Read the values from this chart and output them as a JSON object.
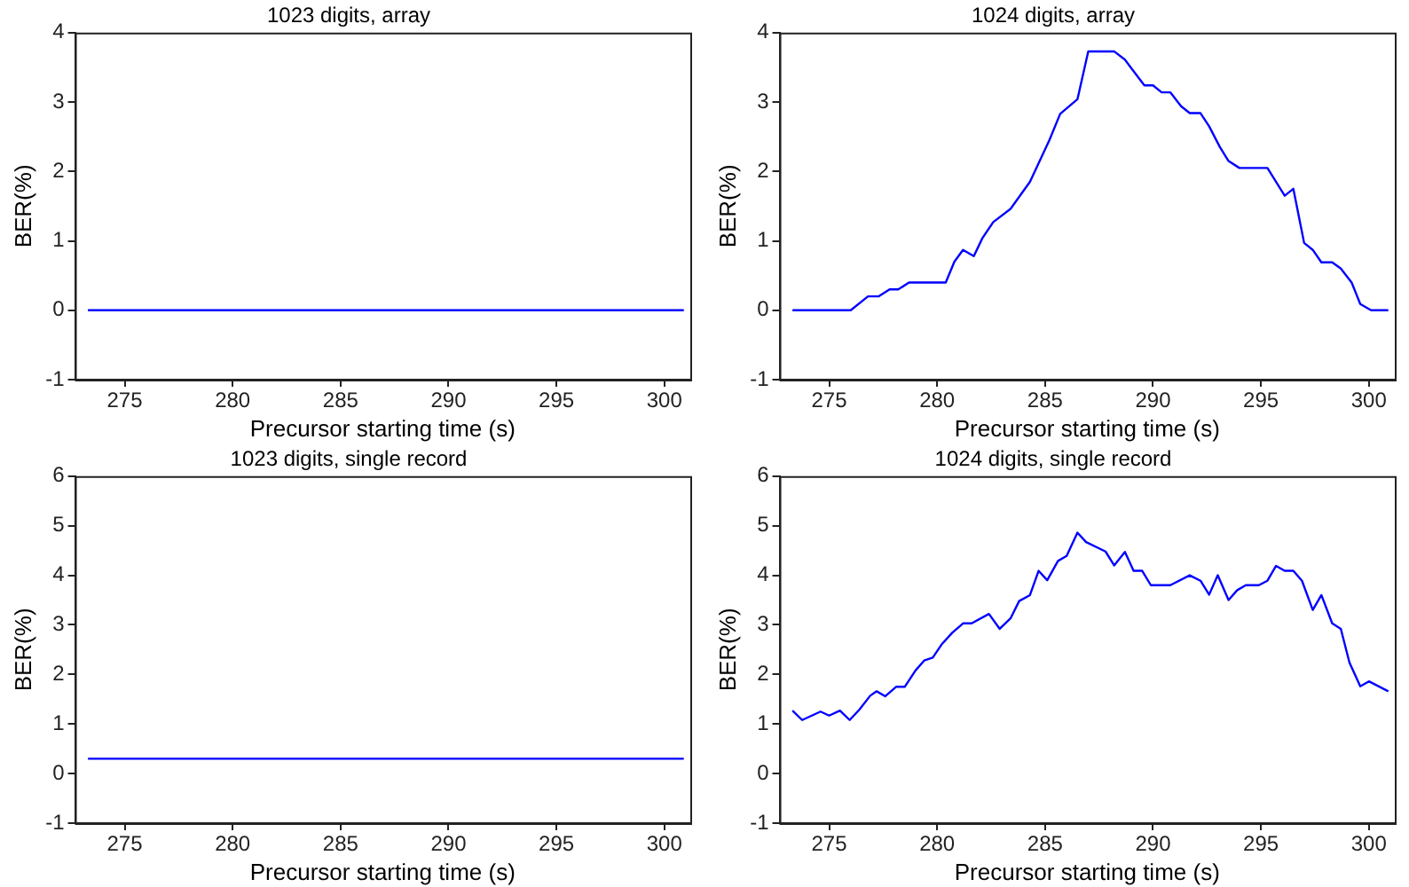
{
  "chart_data": [
    {
      "type": "line",
      "title": "1023 digits, array",
      "xlabel": "Precursor starting time (s)",
      "ylabel": "BER(%)",
      "xlim": [
        272.7,
        301.2
      ],
      "ylim": [
        -1,
        4
      ],
      "xticks": [
        275,
        280,
        285,
        290,
        295,
        300
      ],
      "yticks": [
        -1,
        0,
        1,
        2,
        3,
        4
      ],
      "grid": false,
      "legend": false,
      "series": [
        {
          "color": "#0000ff",
          "x": [
            273.3,
            300.9
          ],
          "values": [
            0,
            0
          ]
        }
      ]
    },
    {
      "type": "line",
      "title": "1024 digits, array",
      "xlabel": "Precursor starting time (s)",
      "ylabel": "BER(%)",
      "xlim": [
        272.7,
        301.2
      ],
      "ylim": [
        -1,
        4
      ],
      "xticks": [
        275,
        280,
        285,
        290,
        295,
        300
      ],
      "yticks": [
        -1,
        0,
        1,
        2,
        3,
        4
      ],
      "grid": false,
      "legend": false,
      "series": [
        {
          "color": "#0000ff",
          "x": [
            273.3,
            276.0,
            276.8,
            277.3,
            277.8,
            278.2,
            278.7,
            280.4,
            280.8,
            281.2,
            281.7,
            282.1,
            282.6,
            283.4,
            284.3,
            285.2,
            285.7,
            286.5,
            287.0,
            288.2,
            288.7,
            289.6,
            290.0,
            290.4,
            290.8,
            291.3,
            291.7,
            292.2,
            292.6,
            293.1,
            293.5,
            294.0,
            295.3,
            296.1,
            296.5,
            297.0,
            297.4,
            297.8,
            298.3,
            298.7,
            299.2,
            299.6,
            300.1,
            300.9
          ],
          "values": [
            0,
            0,
            0.2,
            0.2,
            0.3,
            0.3,
            0.4,
            0.4,
            0.7,
            0.87,
            0.78,
            1.04,
            1.27,
            1.46,
            1.85,
            2.45,
            2.83,
            3.04,
            3.73,
            3.73,
            3.61,
            3.24,
            3.24,
            3.14,
            3.14,
            2.94,
            2.84,
            2.84,
            2.65,
            2.35,
            2.15,
            2.05,
            2.05,
            1.65,
            1.75,
            0.97,
            0.87,
            0.69,
            0.69,
            0.6,
            0.4,
            0.09,
            0,
            0
          ]
        }
      ]
    },
    {
      "type": "line",
      "title": "1023 digits, single record",
      "xlabel": "Precursor starting time (s)",
      "ylabel": "BER(%)",
      "xlim": [
        272.7,
        301.2
      ],
      "ylim": [
        -1,
        6
      ],
      "xticks": [
        275,
        280,
        285,
        290,
        295,
        300
      ],
      "yticks": [
        -1,
        0,
        1,
        2,
        3,
        4,
        5,
        6
      ],
      "grid": false,
      "legend": false,
      "series": [
        {
          "color": "#0000ff",
          "x": [
            273.3,
            300.9
          ],
          "values": [
            0.3,
            0.3
          ]
        }
      ]
    },
    {
      "type": "line",
      "title": "1024 digits, single record",
      "xlabel": "Precursor starting time (s)",
      "ylabel": "BER(%)",
      "xlim": [
        272.7,
        301.2
      ],
      "ylim": [
        -1,
        6
      ],
      "xticks": [
        275,
        280,
        285,
        290,
        295,
        300
      ],
      "yticks": [
        -1,
        0,
        1,
        2,
        3,
        4,
        5,
        6
      ],
      "grid": false,
      "legend": false,
      "series": [
        {
          "color": "#0000ff",
          "x": [
            273.3,
            273.75,
            274.6,
            275,
            275.5,
            275.95,
            276.4,
            276.9,
            277.2,
            277.6,
            278.1,
            278.5,
            279,
            279.4,
            279.8,
            280.2,
            280.7,
            281.2,
            281.6,
            282.4,
            282.9,
            283.4,
            283.8,
            284.3,
            284.7,
            285.1,
            285.6,
            286.0,
            286.5,
            286.9,
            287.8,
            288.2,
            288.7,
            289.1,
            289.5,
            289.9,
            290.8,
            291.7,
            292.2,
            292.6,
            293.0,
            293.5,
            293.9,
            294.3,
            294.9,
            295.3,
            295.7,
            296.1,
            296.5,
            296.9,
            297.4,
            297.8,
            298.3,
            298.7,
            299.1,
            299.6,
            300.0,
            300.9
          ],
          "values": [
            1.27,
            1.08,
            1.25,
            1.17,
            1.27,
            1.08,
            1.29,
            1.57,
            1.66,
            1.56,
            1.75,
            1.75,
            2.08,
            2.28,
            2.34,
            2.6,
            2.84,
            3.03,
            3.03,
            3.22,
            2.92,
            3.13,
            3.48,
            3.6,
            4.09,
            3.9,
            4.29,
            4.39,
            4.86,
            4.67,
            4.48,
            4.2,
            4.47,
            4.09,
            4.09,
            3.8,
            3.8,
            4.0,
            3.89,
            3.61,
            4.0,
            3.5,
            3.7,
            3.8,
            3.8,
            3.89,
            4.19,
            4.09,
            4.09,
            3.89,
            3.3,
            3.6,
            3.03,
            2.92,
            2.24,
            1.76,
            1.86,
            1.66
          ]
        }
      ]
    }
  ]
}
